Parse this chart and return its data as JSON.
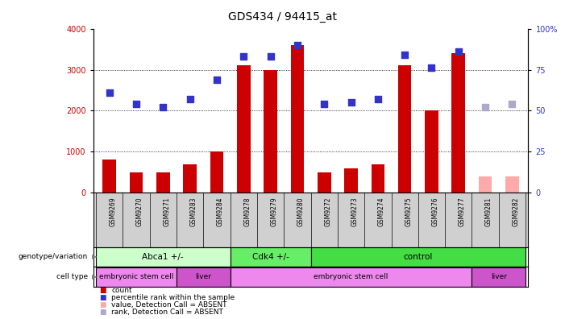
{
  "title": "GDS434 / 94415_at",
  "samples": [
    "GSM9269",
    "GSM9270",
    "GSM9271",
    "GSM9283",
    "GSM9284",
    "GSM9278",
    "GSM9279",
    "GSM9280",
    "GSM9272",
    "GSM9273",
    "GSM9274",
    "GSM9275",
    "GSM9276",
    "GSM9277",
    "GSM9281",
    "GSM9282"
  ],
  "bar_values": [
    800,
    500,
    500,
    700,
    1000,
    3100,
    3000,
    3600,
    500,
    600,
    700,
    3100,
    2000,
    3400,
    400,
    400
  ],
  "bar_colors": [
    "#cc0000",
    "#cc0000",
    "#cc0000",
    "#cc0000",
    "#cc0000",
    "#cc0000",
    "#cc0000",
    "#cc0000",
    "#cc0000",
    "#cc0000",
    "#cc0000",
    "#cc0000",
    "#cc0000",
    "#cc0000",
    "#ffaaaa",
    "#ffaaaa"
  ],
  "rank_values_pct": [
    61,
    54,
    52,
    57,
    69,
    83,
    83,
    90,
    54,
    55,
    57,
    84,
    76,
    86,
    52,
    54
  ],
  "rank_colors": [
    "#3333cc",
    "#3333cc",
    "#3333cc",
    "#3333cc",
    "#3333cc",
    "#3333cc",
    "#3333cc",
    "#3333cc",
    "#3333cc",
    "#3333cc",
    "#3333cc",
    "#3333cc",
    "#3333cc",
    "#3333cc",
    "#aaaacc",
    "#aaaacc"
  ],
  "ylim_left": [
    0,
    4000
  ],
  "ylim_right": [
    0,
    100
  ],
  "yticks_left": [
    0,
    1000,
    2000,
    3000,
    4000
  ],
  "ytick_labels_left": [
    "0",
    "1000",
    "2000",
    "3000",
    "4000"
  ],
  "yticks_right": [
    0,
    25,
    50,
    75,
    100
  ],
  "ytick_labels_right": [
    "0",
    "25",
    "50",
    "75",
    "100%"
  ],
  "genotype_groups": [
    {
      "label": "Abca1 +/-",
      "start": 0,
      "end": 4,
      "color": "#ccffcc"
    },
    {
      "label": "Cdk4 +/-",
      "start": 5,
      "end": 7,
      "color": "#66ee66"
    },
    {
      "label": "control",
      "start": 8,
      "end": 15,
      "color": "#44dd44"
    }
  ],
  "celltype_groups": [
    {
      "label": "embryonic stem cell",
      "start": 0,
      "end": 2,
      "color": "#ee88ee"
    },
    {
      "label": "liver",
      "start": 3,
      "end": 4,
      "color": "#cc55cc"
    },
    {
      "label": "embryonic stem cell",
      "start": 5,
      "end": 13,
      "color": "#ee88ee"
    },
    {
      "label": "liver",
      "start": 14,
      "end": 15,
      "color": "#cc55cc"
    }
  ],
  "legend_items": [
    {
      "color": "#cc0000",
      "label": "count"
    },
    {
      "color": "#3333cc",
      "label": "percentile rank within the sample"
    },
    {
      "color": "#ffaaaa",
      "label": "value, Detection Call = ABSENT"
    },
    {
      "color": "#aaaacc",
      "label": "rank, Detection Call = ABSENT"
    }
  ],
  "bar_width": 0.5,
  "rank_marker_size": 35,
  "background_color": "#ffffff",
  "plot_bg_color": "#ffffff",
  "grid_color": "#000000",
  "label_fontsize": 7,
  "title_fontsize": 10
}
